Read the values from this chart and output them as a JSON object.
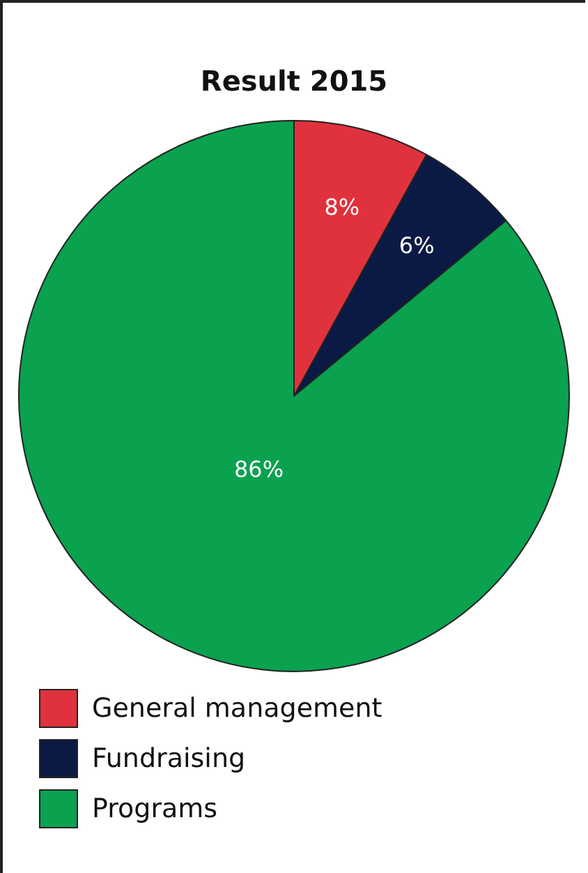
{
  "chart_data": {
    "type": "pie",
    "title": "Result 2015",
    "categories": [
      "General management",
      "Fundraising",
      "Programs"
    ],
    "values": [
      8,
      6,
      86
    ],
    "colors": [
      "#e0323c",
      "#0b1a44",
      "#0aa14f"
    ],
    "value_labels": [
      "8%",
      "6%",
      "86%"
    ],
    "legend": "bottom left"
  }
}
